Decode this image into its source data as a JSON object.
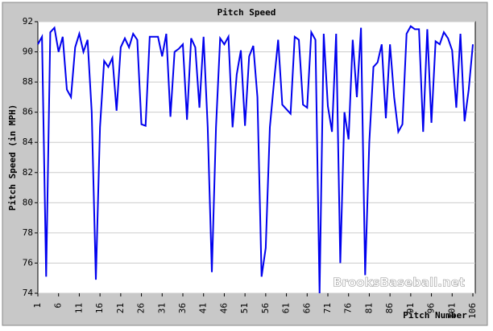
{
  "chart_data": {
    "type": "line",
    "title": "Pitch Speed",
    "y_label": "Pitch Speed (in MPH)",
    "x_label": "Pitch Number",
    "annotation": "BrooksBaseball.net",
    "x": [
      1,
      2,
      3,
      4,
      5,
      6,
      7,
      8,
      9,
      10,
      11,
      12,
      13,
      14,
      15,
      16,
      17,
      18,
      19,
      20,
      21,
      22,
      23,
      24,
      25,
      26,
      27,
      28,
      29,
      30,
      31,
      32,
      33,
      34,
      35,
      36,
      37,
      38,
      39,
      40,
      41,
      42,
      43,
      44,
      45,
      46,
      47,
      48,
      49,
      50,
      51,
      52,
      53,
      54,
      55,
      56,
      57,
      58,
      59,
      60,
      61,
      62,
      63,
      64,
      65,
      66,
      67,
      68,
      69,
      70,
      71,
      72,
      73,
      74,
      75,
      76,
      77,
      78,
      79,
      80,
      81,
      82,
      83,
      84,
      85,
      86,
      87,
      88,
      89,
      90,
      91,
      92,
      93,
      94,
      95,
      96,
      97,
      98,
      99,
      100,
      101,
      102,
      103,
      104,
      105,
      106
    ],
    "series": [
      {
        "name": "Pitch Speed",
        "color": "#0000ee",
        "values": [
          90.5,
          91,
          75.1,
          91.3,
          91.6,
          90,
          91,
          87.5,
          87,
          90.3,
          91.2,
          90,
          90.8,
          86,
          74.9,
          85,
          89.4,
          89,
          89.6,
          86.1,
          90.3,
          90.9,
          90.3,
          91.2,
          90.8,
          85.2,
          85.1,
          91,
          91,
          91,
          89.7,
          91.2,
          85.7,
          90,
          90.2,
          90.5,
          85.5,
          90.9,
          90.3,
          86.3,
          91,
          85,
          75.4,
          85,
          90.9,
          90.5,
          91,
          85,
          88.5,
          90.1,
          85.1,
          89.7,
          90.4,
          87,
          75.1,
          77,
          85,
          88,
          90.8,
          86.5,
          86.2,
          85.9,
          91,
          90.8,
          86.5,
          86.3,
          91.3,
          90.8,
          74,
          91.2,
          86.4,
          84.7,
          91.2,
          76,
          86,
          84.2,
          90.8,
          87,
          91.6,
          75.2,
          84,
          89,
          89.3,
          90.5,
          85.6,
          90.5,
          87,
          84.7,
          85.2,
          91.2,
          91.7,
          91.5,
          91.5,
          84.7,
          91.5,
          85.3,
          90.7,
          90.5,
          91.3,
          90.9,
          90.1,
          86.3,
          91.2,
          85.4,
          87.5,
          90.5
        ]
      }
    ],
    "xlim": [
      1,
      106
    ],
    "ylim": [
      74,
      92
    ],
    "xticks": [
      1,
      6,
      11,
      16,
      21,
      26,
      31,
      36,
      41,
      46,
      51,
      56,
      61,
      66,
      71,
      76,
      81,
      86,
      91,
      96,
      101,
      106
    ],
    "yticks": [
      74,
      76,
      78,
      80,
      82,
      84,
      86,
      88,
      90,
      92
    ],
    "grid": true
  }
}
